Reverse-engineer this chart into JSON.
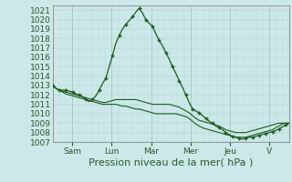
{
  "xlabel": "Pression niveau de la mer( hPa )",
  "bg_color": "#cce8e8",
  "grid_major_color": "#aacccc",
  "grid_minor_color": "#bbdddd",
  "line_color": "#1a5c1a",
  "ylim": [
    1007,
    1021.5
  ],
  "yticks": [
    1007,
    1008,
    1009,
    1010,
    1011,
    1012,
    1013,
    1014,
    1015,
    1016,
    1017,
    1018,
    1019,
    1020,
    1021
  ],
  "day_labels": [
    "Sam",
    "Lun",
    "Mar",
    "Mer",
    "Jeu",
    "V"
  ],
  "day_positions": [
    24,
    72,
    120,
    168,
    216,
    264
  ],
  "xlim": [
    0,
    288
  ],
  "series": [
    [
      1013.0,
      1012.7,
      1012.5,
      1012.5,
      1012.5,
      1012.4,
      1012.3,
      1012.1,
      1012.0,
      1011.8,
      1011.5,
      1011.3,
      1011.5,
      1011.9,
      1012.5,
      1013.2,
      1013.8,
      1015.0,
      1016.2,
      1017.5,
      1018.3,
      1019.0,
      1019.5,
      1019.9,
      1020.3,
      1020.8,
      1021.2,
      1020.7,
      1020.0,
      1019.6,
      1019.3,
      1018.5,
      1017.8,
      1017.2,
      1016.5,
      1015.8,
      1015.0,
      1014.3,
      1013.5,
      1012.8,
      1012.0,
      1011.2,
      1010.5,
      1010.3,
      1010.1,
      1009.8,
      1009.5,
      1009.2,
      1009.0,
      1008.7,
      1008.5,
      1008.3,
      1008.0,
      1007.8,
      1007.6,
      1007.5,
      1007.4,
      1007.3,
      1007.4,
      1007.5,
      1007.5,
      1007.6,
      1007.7,
      1007.8,
      1007.9,
      1008.0,
      1008.1,
      1008.2,
      1008.4,
      1008.6,
      1008.8,
      1009.0
    ],
    [
      1013.0,
      1012.7,
      1012.5,
      1012.4,
      1012.3,
      1012.2,
      1012.1,
      1012.0,
      1011.9,
      1011.8,
      1011.7,
      1011.6,
      1011.5,
      1011.4,
      1011.3,
      1011.2,
      1011.2,
      1011.3,
      1011.4,
      1011.5,
      1011.5,
      1011.5,
      1011.5,
      1011.5,
      1011.5,
      1011.5,
      1011.4,
      1011.3,
      1011.2,
      1011.1,
      1011.0,
      1011.0,
      1011.0,
      1011.0,
      1011.0,
      1011.0,
      1010.9,
      1010.8,
      1010.7,
      1010.5,
      1010.3,
      1010.1,
      1009.8,
      1009.5,
      1009.3,
      1009.2,
      1009.1,
      1009.0,
      1008.9,
      1008.8,
      1008.7,
      1008.5,
      1008.3,
      1008.2,
      1008.1,
      1008.0,
      1008.0,
      1008.0,
      1008.0,
      1008.1,
      1008.2,
      1008.3,
      1008.4,
      1008.5,
      1008.6,
      1008.7,
      1008.8,
      1008.9,
      1009.0,
      1009.0,
      1009.0,
      1009.0
    ],
    [
      1013.0,
      1012.7,
      1012.5,
      1012.3,
      1012.1,
      1012.0,
      1011.9,
      1011.8,
      1011.7,
      1011.6,
      1011.5,
      1011.4,
      1011.3,
      1011.2,
      1011.1,
      1011.0,
      1011.0,
      1011.0,
      1011.0,
      1011.0,
      1010.9,
      1010.8,
      1010.8,
      1010.7,
      1010.6,
      1010.5,
      1010.5,
      1010.4,
      1010.3,
      1010.2,
      1010.1,
      1010.0,
      1010.0,
      1010.0,
      1010.0,
      1010.0,
      1010.0,
      1010.0,
      1009.9,
      1009.8,
      1009.7,
      1009.5,
      1009.2,
      1008.9,
      1008.7,
      1008.5,
      1008.4,
      1008.3,
      1008.2,
      1008.1,
      1008.0,
      1007.9,
      1007.8,
      1007.7,
      1007.6,
      1007.5,
      1007.5,
      1007.5,
      1007.5,
      1007.6,
      1007.7,
      1007.8,
      1007.9,
      1008.0,
      1008.1,
      1008.2,
      1008.3,
      1008.5,
      1008.7,
      1008.9,
      1009.0,
      1009.0
    ]
  ],
  "n_points": 72,
  "xlabel_fontsize": 8,
  "tick_fontsize": 6.5
}
